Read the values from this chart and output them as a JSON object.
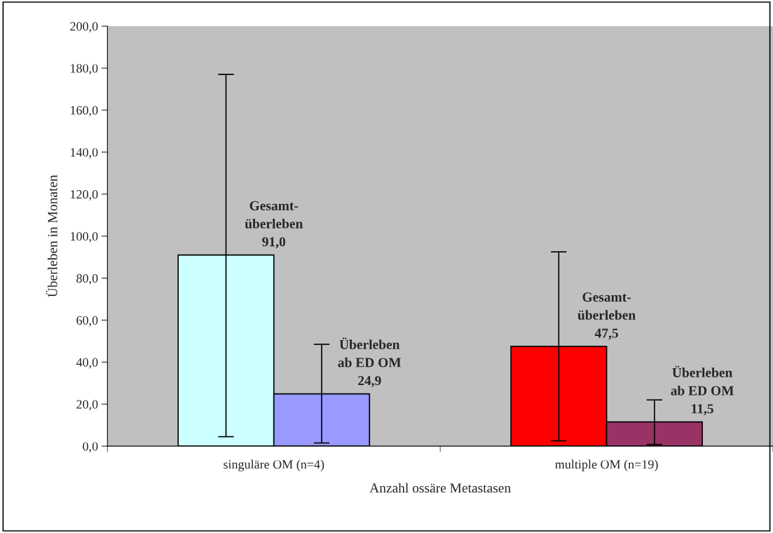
{
  "chart_data": {
    "type": "bar",
    "xlabel": "Anzahl ossäre Metastasen",
    "ylabel": "Überleben in Monaten",
    "categories": [
      "singuläre OM (n=4)",
      "multiple OM (n=19)"
    ],
    "series": [
      {
        "colors": [
          "#ccffff",
          "#ff0000"
        ],
        "values": [
          91.0,
          47.5
        ],
        "errors": [
          [
            4.5,
            177
          ],
          [
            2.5,
            92.5
          ]
        ],
        "value_labels": [
          "Gesamt-\nüberleben\n91,0",
          "Gesamt-\nüberleben\n47,5"
        ]
      },
      {
        "colors": [
          "#9999ff",
          "#993366"
        ],
        "values": [
          24.9,
          11.5
        ],
        "errors": [
          [
            1.5,
            48.5
          ],
          [
            0.8,
            22
          ]
        ],
        "value_labels": [
          "Überleben\nab ED OM\n24,9",
          "Überleben\nab ED OM\n11,5"
        ]
      }
    ],
    "ylim": [
      0,
      200
    ],
    "yticks": [
      {
        "value": 0,
        "label": "0,0"
      },
      {
        "value": 20,
        "label": "20,0"
      },
      {
        "value": 40,
        "label": "40,0"
      },
      {
        "value": 60,
        "label": "60,0"
      },
      {
        "value": 80,
        "label": "80,0"
      },
      {
        "value": 100,
        "label": "100,0"
      },
      {
        "value": 120,
        "label": "120,0"
      },
      {
        "value": 140,
        "label": "140,0"
      },
      {
        "value": 160,
        "label": "160,0"
      },
      {
        "value": 180,
        "label": "180,0"
      },
      {
        "value": 200,
        "label": "200,0"
      }
    ],
    "grid": false,
    "legend": false
  }
}
